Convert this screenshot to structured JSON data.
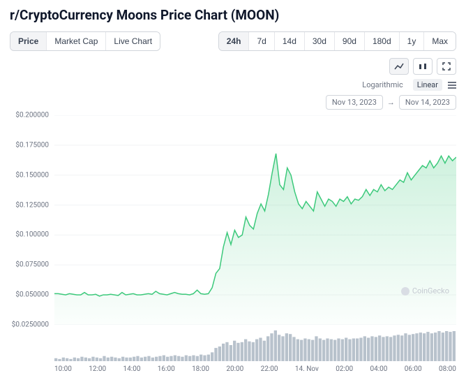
{
  "title": "r/CryptoCurrency Moons Price Chart (MOON)",
  "metric_tabs": {
    "items": [
      "Price",
      "Market Cap",
      "Live Chart"
    ],
    "active_index": 0
  },
  "range_tabs": {
    "items": [
      "24h",
      "7d",
      "14d",
      "30d",
      "90d",
      "180d",
      "1y",
      "Max"
    ],
    "active_index": 0
  },
  "scale": {
    "log_label": "Logarithmic",
    "linear_label": "Linear",
    "active": "linear"
  },
  "date_range": {
    "from": "Nov 13, 2023",
    "to": "Nov 14, 2023",
    "separator": "→"
  },
  "watermark": "CoinGecko",
  "chart": {
    "type": "area",
    "line_color": "#3cc97b",
    "fill_top": "rgba(60,201,123,0.25)",
    "fill_bottom": "rgba(60,201,123,0.02)",
    "grid_color": "#f1f3f5",
    "background_color": "#ffffff",
    "y_min": 0.025,
    "y_max": 0.2,
    "y_ticks": [
      0.2,
      0.175,
      0.15,
      0.125,
      0.1,
      0.075,
      0.05,
      0.025
    ],
    "y_tick_labels": [
      "$0.200000",
      "$0.175000",
      "$0.150000",
      "$0.125000",
      "$0.100000",
      "$0.075000",
      "$0.050000",
      "$0.0250000"
    ],
    "x_ticks": [
      "10:00",
      "12:00",
      "14:00",
      "16:00",
      "18:00",
      "20:00",
      "22:00",
      "14. Nov",
      "02:00",
      "04:00",
      "06:00",
      "08:00"
    ],
    "series": [
      0.051,
      0.051,
      0.0505,
      0.05,
      0.051,
      0.0505,
      0.05,
      0.05,
      0.052,
      0.05,
      0.05,
      0.0505,
      0.049,
      0.05,
      0.05,
      0.0505,
      0.05,
      0.0495,
      0.052,
      0.05,
      0.0505,
      0.051,
      0.05,
      0.05,
      0.0505,
      0.051,
      0.0505,
      0.053,
      0.051,
      0.0505,
      0.05,
      0.051,
      0.052,
      0.051,
      0.0505,
      0.0505,
      0.05,
      0.051,
      0.054,
      0.051,
      0.0505,
      0.051,
      0.056,
      0.068,
      0.072,
      0.09,
      0.102,
      0.092,
      0.104,
      0.098,
      0.1,
      0.115,
      0.108,
      0.105,
      0.118,
      0.126,
      0.12,
      0.134,
      0.152,
      0.168,
      0.142,
      0.138,
      0.156,
      0.15,
      0.136,
      0.126,
      0.122,
      0.128,
      0.124,
      0.12,
      0.136,
      0.13,
      0.124,
      0.13,
      0.128,
      0.124,
      0.13,
      0.128,
      0.132,
      0.126,
      0.13,
      0.129,
      0.132,
      0.138,
      0.133,
      0.138,
      0.136,
      0.142,
      0.137,
      0.14,
      0.138,
      0.142,
      0.146,
      0.144,
      0.152,
      0.146,
      0.15,
      0.154,
      0.158,
      0.156,
      0.162,
      0.156,
      0.16,
      0.166,
      0.16,
      0.166,
      0.162,
      0.165
    ],
    "volume_color": "#b8c2cc",
    "volume": [
      4,
      3,
      5,
      4,
      3,
      5,
      4,
      6,
      5,
      4,
      6,
      5,
      4,
      7,
      5,
      6,
      5,
      4,
      6,
      5,
      5,
      6,
      7,
      5,
      6,
      7,
      5,
      6,
      7,
      8,
      6,
      7,
      8,
      7,
      6,
      8,
      7,
      8,
      7,
      9,
      8,
      9,
      12,
      18,
      20,
      24,
      26,
      22,
      28,
      25,
      26,
      30,
      27,
      26,
      30,
      32,
      28,
      34,
      38,
      42,
      36,
      34,
      38,
      37,
      33,
      30,
      29,
      31,
      30,
      29,
      34,
      31,
      29,
      31,
      30,
      29,
      31,
      30,
      32,
      30,
      31,
      31,
      32,
      34,
      32,
      34,
      33,
      35,
      33,
      34,
      33,
      35,
      36,
      35,
      38,
      36,
      37,
      38,
      39,
      38,
      40,
      38,
      39,
      41,
      39,
      41,
      40,
      41
    ]
  }
}
